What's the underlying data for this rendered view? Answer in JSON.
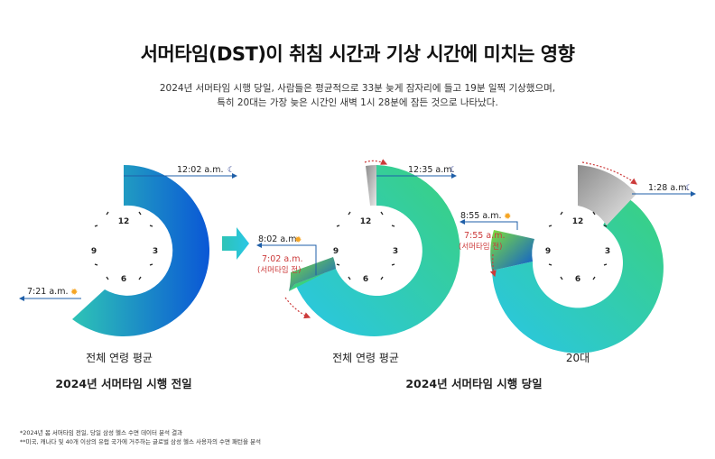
{
  "title": "서머타임(DST)이 취침 시간과 기상 시간에 미치는 영향",
  "subtitle": [
    "2024년 서머타임 시행 당일, 사람들은 평균적으로 33분 늦게 잠자리에 들고 19분 일찍 기상했으며,",
    "특히 20대는 가장 늦은 시간인 새벽 1시 28분에 잠든 것으로 나타났다."
  ],
  "clock_numbers": [
    "12",
    "3",
    "6",
    "9"
  ],
  "colors": {
    "blue_dark": "#0a57d6",
    "teal": "#2ec4b6",
    "cyan": "#29c6e6",
    "green": "#3ad17d",
    "gray_shift": "#b8b8b8",
    "arrow_blue": "#1f5fa8",
    "shift_red": "#cc3a3a",
    "sun": "#f5a524",
    "moon": "#2a3d8f"
  },
  "charts": [
    {
      "sleep_time": "12:02 a.m.",
      "wake_time": "7:21 a.m.",
      "group_label": "전체 연령 평균",
      "icon_sleep": "moon-icon",
      "icon_wake": "sun-icon"
    },
    {
      "sleep_time": "12:35 a.m.",
      "wake_time": "8:02 a.m.",
      "wake_before": "7:02 a.m.",
      "before_note": "(서머타임 전)",
      "group_label": "전체 연령 평균",
      "icon_sleep": "moon-icon",
      "icon_wake": "sun-icon"
    },
    {
      "sleep_time": "1:28 a.m.",
      "wake_time": "8:55 a.m.",
      "wake_before": "7:55 a.m.",
      "before_note": "(서머타임 전)",
      "group_label": "20대",
      "icon_sleep": "moon-icon",
      "icon_wake": "sun-icon"
    }
  ],
  "group_titles": {
    "before": "2024년 서머타임 시행 전일",
    "after": "2024년 서머타임 시행 당일"
  },
  "notes": [
    "*2024년 봄 서머타임 전일, 당일 삼성 헬스 수면 데이터 분석 결과",
    "**미국, 캐나다 및 40개 이상의 유럽 국가에 거주하는 글로벌 삼성 헬스 사용자의 수면 패턴을 분석"
  ]
}
